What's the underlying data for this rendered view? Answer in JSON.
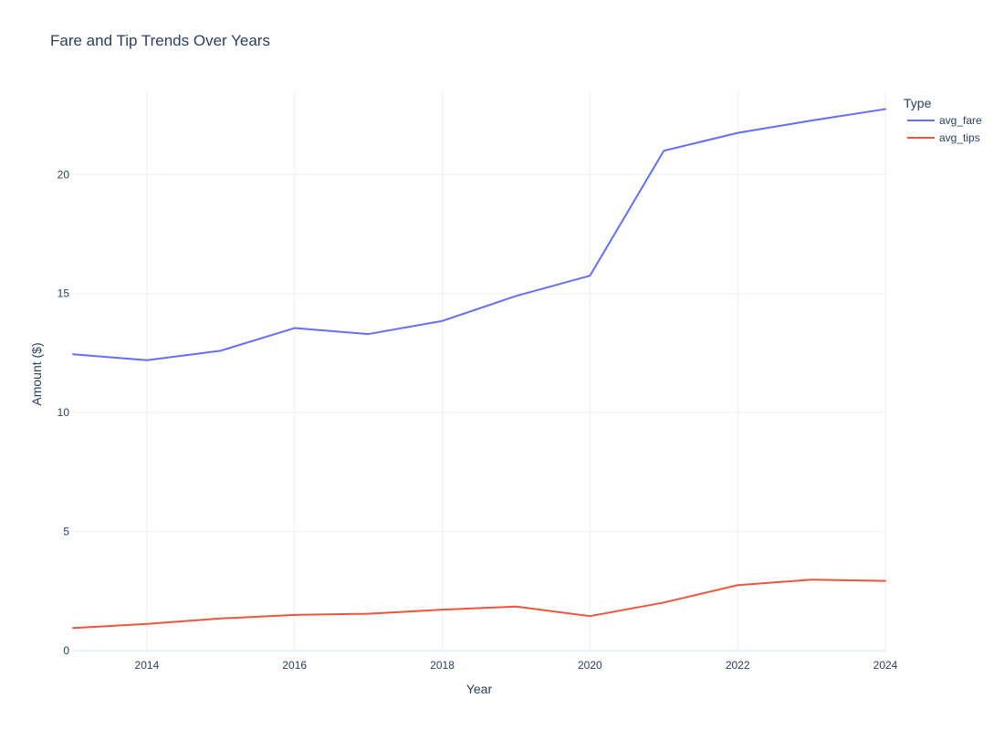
{
  "chart_data": {
    "type": "line",
    "title": "Fare and Tip Trends Over Years",
    "xlabel": "Year",
    "ylabel": "Amount ($)",
    "x": [
      2013,
      2014,
      2015,
      2016,
      2017,
      2018,
      2019,
      2020,
      2021,
      2022,
      2023,
      2024
    ],
    "xlim": [
      2013,
      2024
    ],
    "ylim": [
      0,
      23.5
    ],
    "x_ticks": [
      2014,
      2016,
      2018,
      2020,
      2022,
      2024
    ],
    "y_ticks": [
      0,
      5,
      10,
      15,
      20
    ],
    "grid": true,
    "legend": {
      "title": "Type",
      "position": "top-right"
    },
    "series": [
      {
        "name": "avg_fare",
        "color": "#636efa",
        "values": [
          12.45,
          12.2,
          12.6,
          13.55,
          13.3,
          13.85,
          14.9,
          15.75,
          21.0,
          21.75,
          22.27,
          22.75
        ]
      },
      {
        "name": "avg_tips",
        "color": "#ef553b",
        "values": [
          0.95,
          1.12,
          1.35,
          1.5,
          1.55,
          1.72,
          1.85,
          1.45,
          2.02,
          2.75,
          2.98,
          2.93
        ]
      }
    ]
  }
}
